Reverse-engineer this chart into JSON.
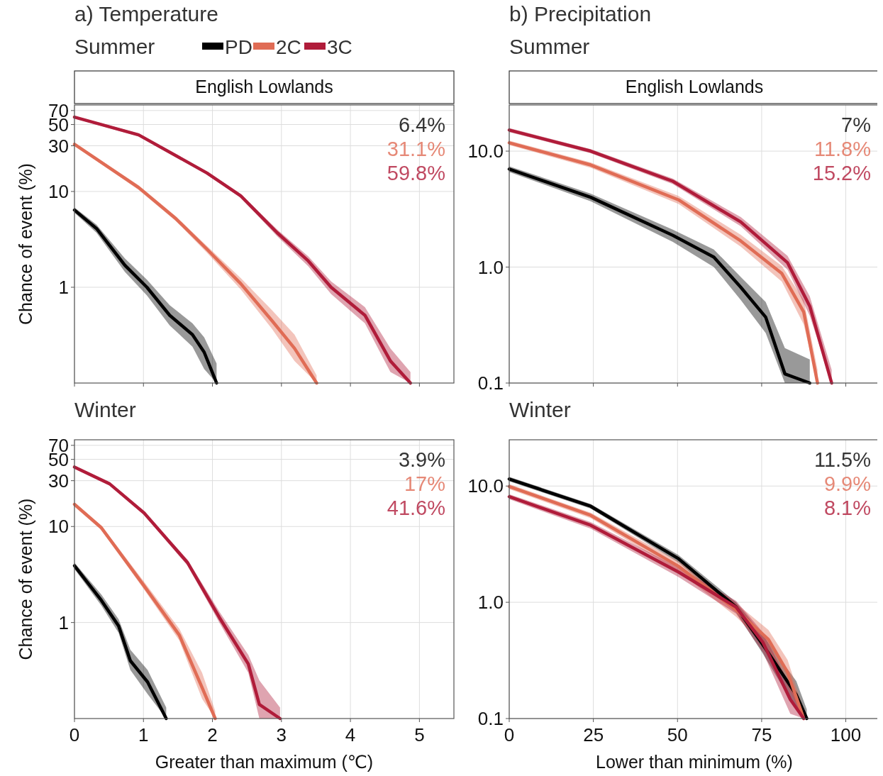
{
  "chart_data": [
    {
      "type": "line",
      "title": "a) Temperature",
      "subtitle": "Summer",
      "ylabel": "Chance of event (%)",
      "log": true,
      "grid": true,
      "legend": "top",
      "tick_labels": "y",
      "xlim": [
        0,
        5.5
      ],
      "xticks": [
        0,
        1,
        2,
        3,
        4,
        5
      ],
      "ylim": [
        0.1,
        80
      ],
      "yticks": [
        1,
        10,
        30,
        50,
        70
      ],
      "line_style": "solid",
      "annotations": [
        "English Lowlands",
        "6.4%",
        "31.1%",
        "59.8%"
      ],
      "series": [
        {
          "name": "PD",
          "color": "#000000",
          "x": [
            0,
            0.32,
            0.73,
            1.05,
            1.38,
            1.71,
            1.88,
            2.06
          ],
          "values": [
            6.4,
            4.1,
            1.7,
            1.0,
            0.51,
            0.32,
            0.21,
            0.1
          ],
          "lower": [
            6.0,
            3.7,
            1.45,
            0.82,
            0.4,
            0.24,
            0.14,
            0.1
          ],
          "upper": [
            6.8,
            4.5,
            2.0,
            1.2,
            0.65,
            0.42,
            0.3,
            0.16
          ]
        },
        {
          "name": "2C",
          "color": "#e06c55",
          "x": [
            0,
            0.93,
            1.47,
            1.92,
            2.41,
            2.86,
            3.19,
            3.51
          ],
          "values": [
            31.1,
            11,
            5.2,
            2.5,
            1.09,
            0.45,
            0.23,
            0.1
          ],
          "lower": [
            30,
            10.4,
            4.9,
            2.3,
            0.95,
            0.37,
            0.17,
            0.1
          ],
          "upper": [
            32.2,
            11.6,
            5.5,
            2.7,
            1.25,
            0.58,
            0.32,
            0.12
          ]
        },
        {
          "name": "3C",
          "color": "#b01c3a",
          "x": [
            0,
            0.93,
            1.92,
            2.41,
            2.94,
            3.39,
            3.72,
            4.21,
            4.58,
            4.87
          ],
          "values": [
            59.8,
            39,
            15.6,
            9,
            3.7,
            1.88,
            1.0,
            0.51,
            0.17,
            0.1
          ],
          "lower": [
            58,
            37.5,
            15,
            8.6,
            3.4,
            1.65,
            0.85,
            0.42,
            0.13,
            0.1
          ],
          "upper": [
            61.5,
            40.5,
            16.2,
            9.4,
            4.0,
            2.1,
            1.15,
            0.62,
            0.23,
            0.13
          ]
        }
      ]
    },
    {
      "type": "line",
      "title": "b) Precipitation",
      "subtitle": "Summer",
      "log": true,
      "grid": true,
      "tick_labels": "y",
      "xlim": [
        0,
        110
      ],
      "xticks": [
        0,
        25,
        50,
        75,
        100
      ],
      "ylim": [
        0.1,
        25
      ],
      "yticks": [
        {
          "value": 0.1,
          "label": "0.1"
        },
        {
          "value": 1,
          "label": "1.0"
        },
        {
          "value": 10,
          "label": "10.0"
        }
      ],
      "line_style": "solid",
      "annotations": [
        "English Lowlands",
        "7%",
        "11.8%",
        "15.2%"
      ],
      "series": [
        {
          "color": "#000000",
          "x": [
            0,
            24.2,
            48.6,
            60.8,
            68.8,
            76.2,
            81.9,
            89.3
          ],
          "values": [
            7,
            4.0,
            1.88,
            1.22,
            0.67,
            0.37,
            0.12,
            0.1
          ],
          "lower": [
            6.6,
            3.7,
            1.65,
            1.0,
            0.52,
            0.27,
            0.1,
            0.1
          ],
          "upper": [
            7.4,
            4.3,
            2.1,
            1.42,
            0.82,
            0.5,
            0.2,
            0.16
          ]
        },
        {
          "color": "#e06c55",
          "x": [
            0,
            24.2,
            50.3,
            68.8,
            81,
            87.5,
            91.6
          ],
          "values": [
            11.8,
            7.6,
            3.8,
            1.68,
            0.88,
            0.41,
            0.1
          ],
          "lower": [
            11.3,
            7.2,
            3.5,
            1.5,
            0.75,
            0.32,
            0.1
          ],
          "upper": [
            12.3,
            8.0,
            4.1,
            1.9,
            1.02,
            0.52,
            0.13
          ]
        },
        {
          "color": "#b01c3a",
          "x": [
            0,
            24.2,
            48.6,
            68.8,
            82.7,
            89.3,
            95.8
          ],
          "values": [
            15.2,
            10,
            5.5,
            2.45,
            1.09,
            0.46,
            0.1
          ],
          "lower": [
            14.6,
            9.6,
            5.2,
            2.25,
            0.95,
            0.38,
            0.1
          ],
          "upper": [
            15.8,
            10.4,
            5.8,
            2.7,
            1.25,
            0.56,
            0.13
          ]
        }
      ]
    },
    {
      "type": "line",
      "title": "Winter",
      "xlabel": "Greater than maximum (℃)",
      "ylabel": "Chance of event (%)",
      "log": true,
      "grid": true,
      "xlim": [
        0,
        5.5
      ],
      "xticks": [
        0,
        1,
        2,
        3,
        4,
        5
      ],
      "ylim": [
        0.1,
        80
      ],
      "yticks": [
        1,
        10,
        30,
        50,
        70
      ],
      "line_style": "solid",
      "annotations": [
        "3.9%",
        "17%",
        "41.6%"
      ],
      "series": [
        {
          "color": "#000000",
          "x": [
            0,
            0.39,
            0.64,
            0.81,
            1.06,
            1.33
          ],
          "values": [
            3.9,
            1.7,
            0.92,
            0.4,
            0.24,
            0.1
          ],
          "lower": [
            3.6,
            1.5,
            0.78,
            0.32,
            0.18,
            0.1
          ],
          "upper": [
            4.2,
            1.95,
            1.08,
            0.52,
            0.32,
            0.13
          ]
        },
        {
          "color": "#e06c55",
          "x": [
            0,
            0.39,
            1.01,
            1.52,
            1.85,
            2.04
          ],
          "values": [
            17,
            9.7,
            2.4,
            0.74,
            0.21,
            0.1
          ],
          "lower": [
            16.2,
            9.2,
            2.2,
            0.65,
            0.16,
            0.1
          ],
          "upper": [
            17.8,
            10.2,
            2.65,
            0.86,
            0.3,
            0.12
          ]
        },
        {
          "color": "#b01c3a",
          "x": [
            0,
            0.51,
            1.01,
            1.64,
            2.1,
            2.52,
            2.68,
            2.98
          ],
          "values": [
            41.6,
            27.8,
            13.8,
            4.2,
            1.13,
            0.37,
            0.14,
            0.1
          ],
          "lower": [
            40,
            26.8,
            13.2,
            3.9,
            1.0,
            0.3,
            0.1,
            0.1
          ],
          "upper": [
            43.2,
            28.8,
            14.4,
            4.5,
            1.3,
            0.46,
            0.25,
            0.13
          ]
        }
      ]
    },
    {
      "type": "line",
      "title": "Winter",
      "xlabel": "Lower than minimum (%)",
      "log": true,
      "grid": true,
      "xlim": [
        0,
        110
      ],
      "xticks": [
        0,
        25,
        50,
        75,
        100
      ],
      "ylim": [
        0.1,
        25
      ],
      "yticks": [
        {
          "value": 0.1,
          "label": "0.1"
        },
        {
          "value": 1,
          "label": "1.0"
        },
        {
          "value": 10,
          "label": "10.0"
        }
      ],
      "line_style": "solid",
      "annotations": [
        "11.5%",
        "9.9%",
        "8.1%"
      ],
      "series": [
        {
          "color": "#000000",
          "x": [
            0,
            24.2,
            50.3,
            67.4,
            75.4,
            85.3,
            88.4
          ],
          "values": [
            11.5,
            6.7,
            2.37,
            0.91,
            0.43,
            0.16,
            0.1
          ],
          "lower": [
            11,
            6.4,
            2.2,
            0.82,
            0.36,
            0.12,
            0.1
          ],
          "upper": [
            12,
            7.0,
            2.55,
            1.0,
            0.52,
            0.21,
            0.12
          ]
        },
        {
          "color": "#e06c55",
          "x": [
            0,
            24.2,
            50.3,
            67.4,
            77,
            82.7,
            87.5
          ],
          "values": [
            9.9,
            5.6,
            2.04,
            0.86,
            0.48,
            0.25,
            0.1
          ],
          "lower": [
            9.4,
            5.3,
            1.85,
            0.75,
            0.4,
            0.19,
            0.1
          ],
          "upper": [
            10.4,
            5.9,
            2.25,
            0.98,
            0.58,
            0.32,
            0.12
          ]
        },
        {
          "color": "#b01c3a",
          "x": [
            0,
            24.2,
            50.3,
            67.4,
            75.4,
            83.5,
            87.5
          ],
          "values": [
            8.1,
            4.6,
            1.82,
            0.91,
            0.45,
            0.146,
            0.1
          ],
          "lower": [
            7.7,
            4.3,
            1.65,
            0.8,
            0.37,
            0.11,
            0.1
          ],
          "upper": [
            8.5,
            4.9,
            2.0,
            1.03,
            0.55,
            0.19,
            0.12
          ]
        }
      ]
    }
  ]
}
